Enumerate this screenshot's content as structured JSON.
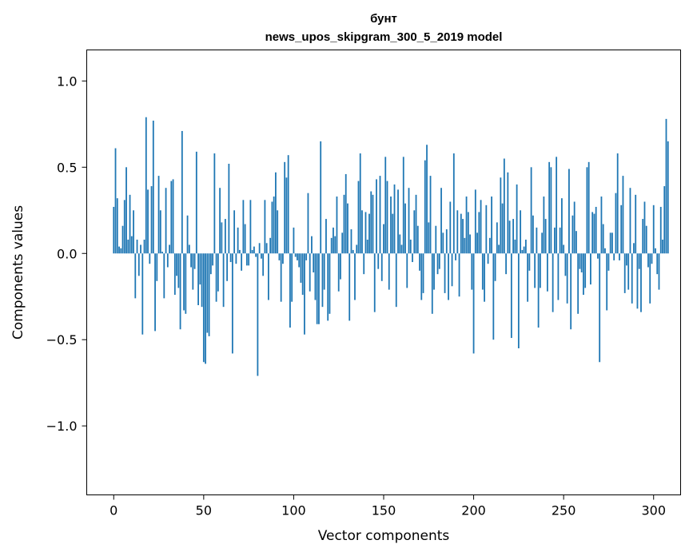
{
  "chart_data": {
    "type": "bar",
    "title": "бунт",
    "subtitle": "news_upos_skipgram_300_5_2019 model",
    "xlabel": "Vector components",
    "ylabel": "Components values",
    "xlim": [
      -15,
      315
    ],
    "ylim": [
      -1.4,
      1.18
    ],
    "xticks": [
      0,
      50,
      100,
      150,
      200,
      250,
      300
    ],
    "yticks": [
      -1.0,
      -0.5,
      0.0,
      0.5,
      1.0
    ],
    "ytick_labels": [
      "−1.0",
      "−0.5",
      "0.0",
      "0.5",
      "1.0"
    ],
    "bar_color": "#1f77b4",
    "values": [
      0.27,
      0.61,
      0.32,
      0.04,
      0.03,
      0.16,
      0.31,
      0.5,
      0.08,
      0.34,
      0.1,
      0.25,
      -0.26,
      0.08,
      -0.13,
      0.05,
      -0.47,
      0.08,
      0.79,
      0.37,
      -0.06,
      0.39,
      0.77,
      -0.45,
      -0.16,
      0.45,
      0.25,
      0.01,
      -0.26,
      0.38,
      -0.08,
      0.05,
      0.42,
      0.43,
      -0.24,
      -0.13,
      -0.2,
      -0.44,
      0.71,
      -0.33,
      -0.35,
      0.22,
      0.05,
      -0.08,
      -0.21,
      -0.09,
      0.59,
      -0.3,
      -0.18,
      -0.31,
      -0.63,
      -0.64,
      -0.46,
      -0.48,
      -0.12,
      -0.07,
      0.58,
      -0.28,
      -0.22,
      0.38,
      0.18,
      -0.31,
      0.2,
      -0.16,
      0.52,
      -0.05,
      -0.58,
      0.25,
      -0.06,
      0.15,
      0.02,
      -0.1,
      0.31,
      0.17,
      -0.07,
      -0.07,
      0.31,
      0.02,
      0.04,
      -0.02,
      -0.71,
      0.06,
      -0.03,
      -0.13,
      0.31,
      0.06,
      -0.27,
      0.09,
      0.3,
      0.33,
      0.47,
      0.25,
      -0.04,
      -0.28,
      -0.06,
      0.53,
      0.44,
      0.57,
      -0.43,
      -0.28,
      0.15,
      -0.02,
      -0.04,
      -0.08,
      -0.17,
      -0.24,
      -0.47,
      -0.04,
      0.35,
      -0.22,
      0.1,
      -0.11,
      -0.27,
      -0.41,
      -0.41,
      0.65,
      -0.31,
      -0.21,
      0.2,
      -0.39,
      -0.35,
      0.09,
      0.15,
      0.1,
      0.33,
      -0.22,
      -0.15,
      0.12,
      0.34,
      0.46,
      0.29,
      -0.39,
      0.14,
      0.02,
      -0.27,
      0.05,
      0.42,
      0.58,
      0.25,
      -0.12,
      0.24,
      0.08,
      0.23,
      0.36,
      0.34,
      -0.34,
      0.43,
      -0.09,
      0.45,
      -0.16,
      0.17,
      0.56,
      0.42,
      -0.21,
      0.33,
      0.23,
      0.4,
      -0.31,
      0.37,
      0.11,
      0.05,
      0.56,
      0.29,
      -0.2,
      0.38,
      0.08,
      -0.05,
      0.25,
      0.34,
      0.16,
      -0.1,
      -0.27,
      -0.23,
      0.54,
      0.63,
      0.18,
      0.45,
      -0.35,
      -0.21,
      0.16,
      -0.12,
      -0.09,
      0.38,
      0.12,
      -0.23,
      0.14,
      -0.27,
      0.3,
      -0.19,
      0.58,
      -0.04,
      0.25,
      -0.25,
      0.23,
      0.2,
      0.09,
      0.33,
      0.24,
      0.11,
      -0.21,
      -0.58,
      0.37,
      0.12,
      0.24,
      0.31,
      -0.21,
      -0.28,
      0.28,
      -0.06,
      0.09,
      0.33,
      -0.5,
      -0.16,
      0.18,
      0.05,
      0.44,
      0.29,
      0.55,
      -0.12,
      0.47,
      0.19,
      -0.49,
      0.2,
      0.08,
      0.4,
      -0.55,
      0.25,
      0.02,
      0.04,
      0.08,
      -0.28,
      -0.1,
      0.5,
      0.22,
      -0.2,
      0.15,
      -0.43,
      -0.2,
      0.12,
      0.33,
      0.2,
      -0.22,
      0.53,
      0.5,
      -0.34,
      0.15,
      0.56,
      -0.27,
      0.15,
      0.32,
      0.05,
      -0.13,
      -0.29,
      0.49,
      -0.44,
      0.22,
      0.3,
      0.13,
      -0.35,
      -0.09,
      -0.11,
      -0.24,
      -0.2,
      0.5,
      0.53,
      -0.18,
      0.24,
      0.23,
      0.27,
      -0.03,
      -0.63,
      0.33,
      0.17,
      0.03,
      -0.33,
      -0.1,
      0.12,
      0.12,
      -0.04,
      0.35,
      0.58,
      -0.04,
      0.28,
      0.45,
      -0.23,
      -0.07,
      -0.21,
      0.38,
      -0.29,
      0.06,
      0.34,
      -0.32,
      -0.09,
      -0.34,
      0.2,
      0.3,
      0.16,
      -0.08,
      -0.29,
      -0.06,
      0.28,
      0.03,
      -0.12,
      -0.21,
      0.27,
      0.08,
      0.39,
      0.78,
      0.65
    ]
  }
}
